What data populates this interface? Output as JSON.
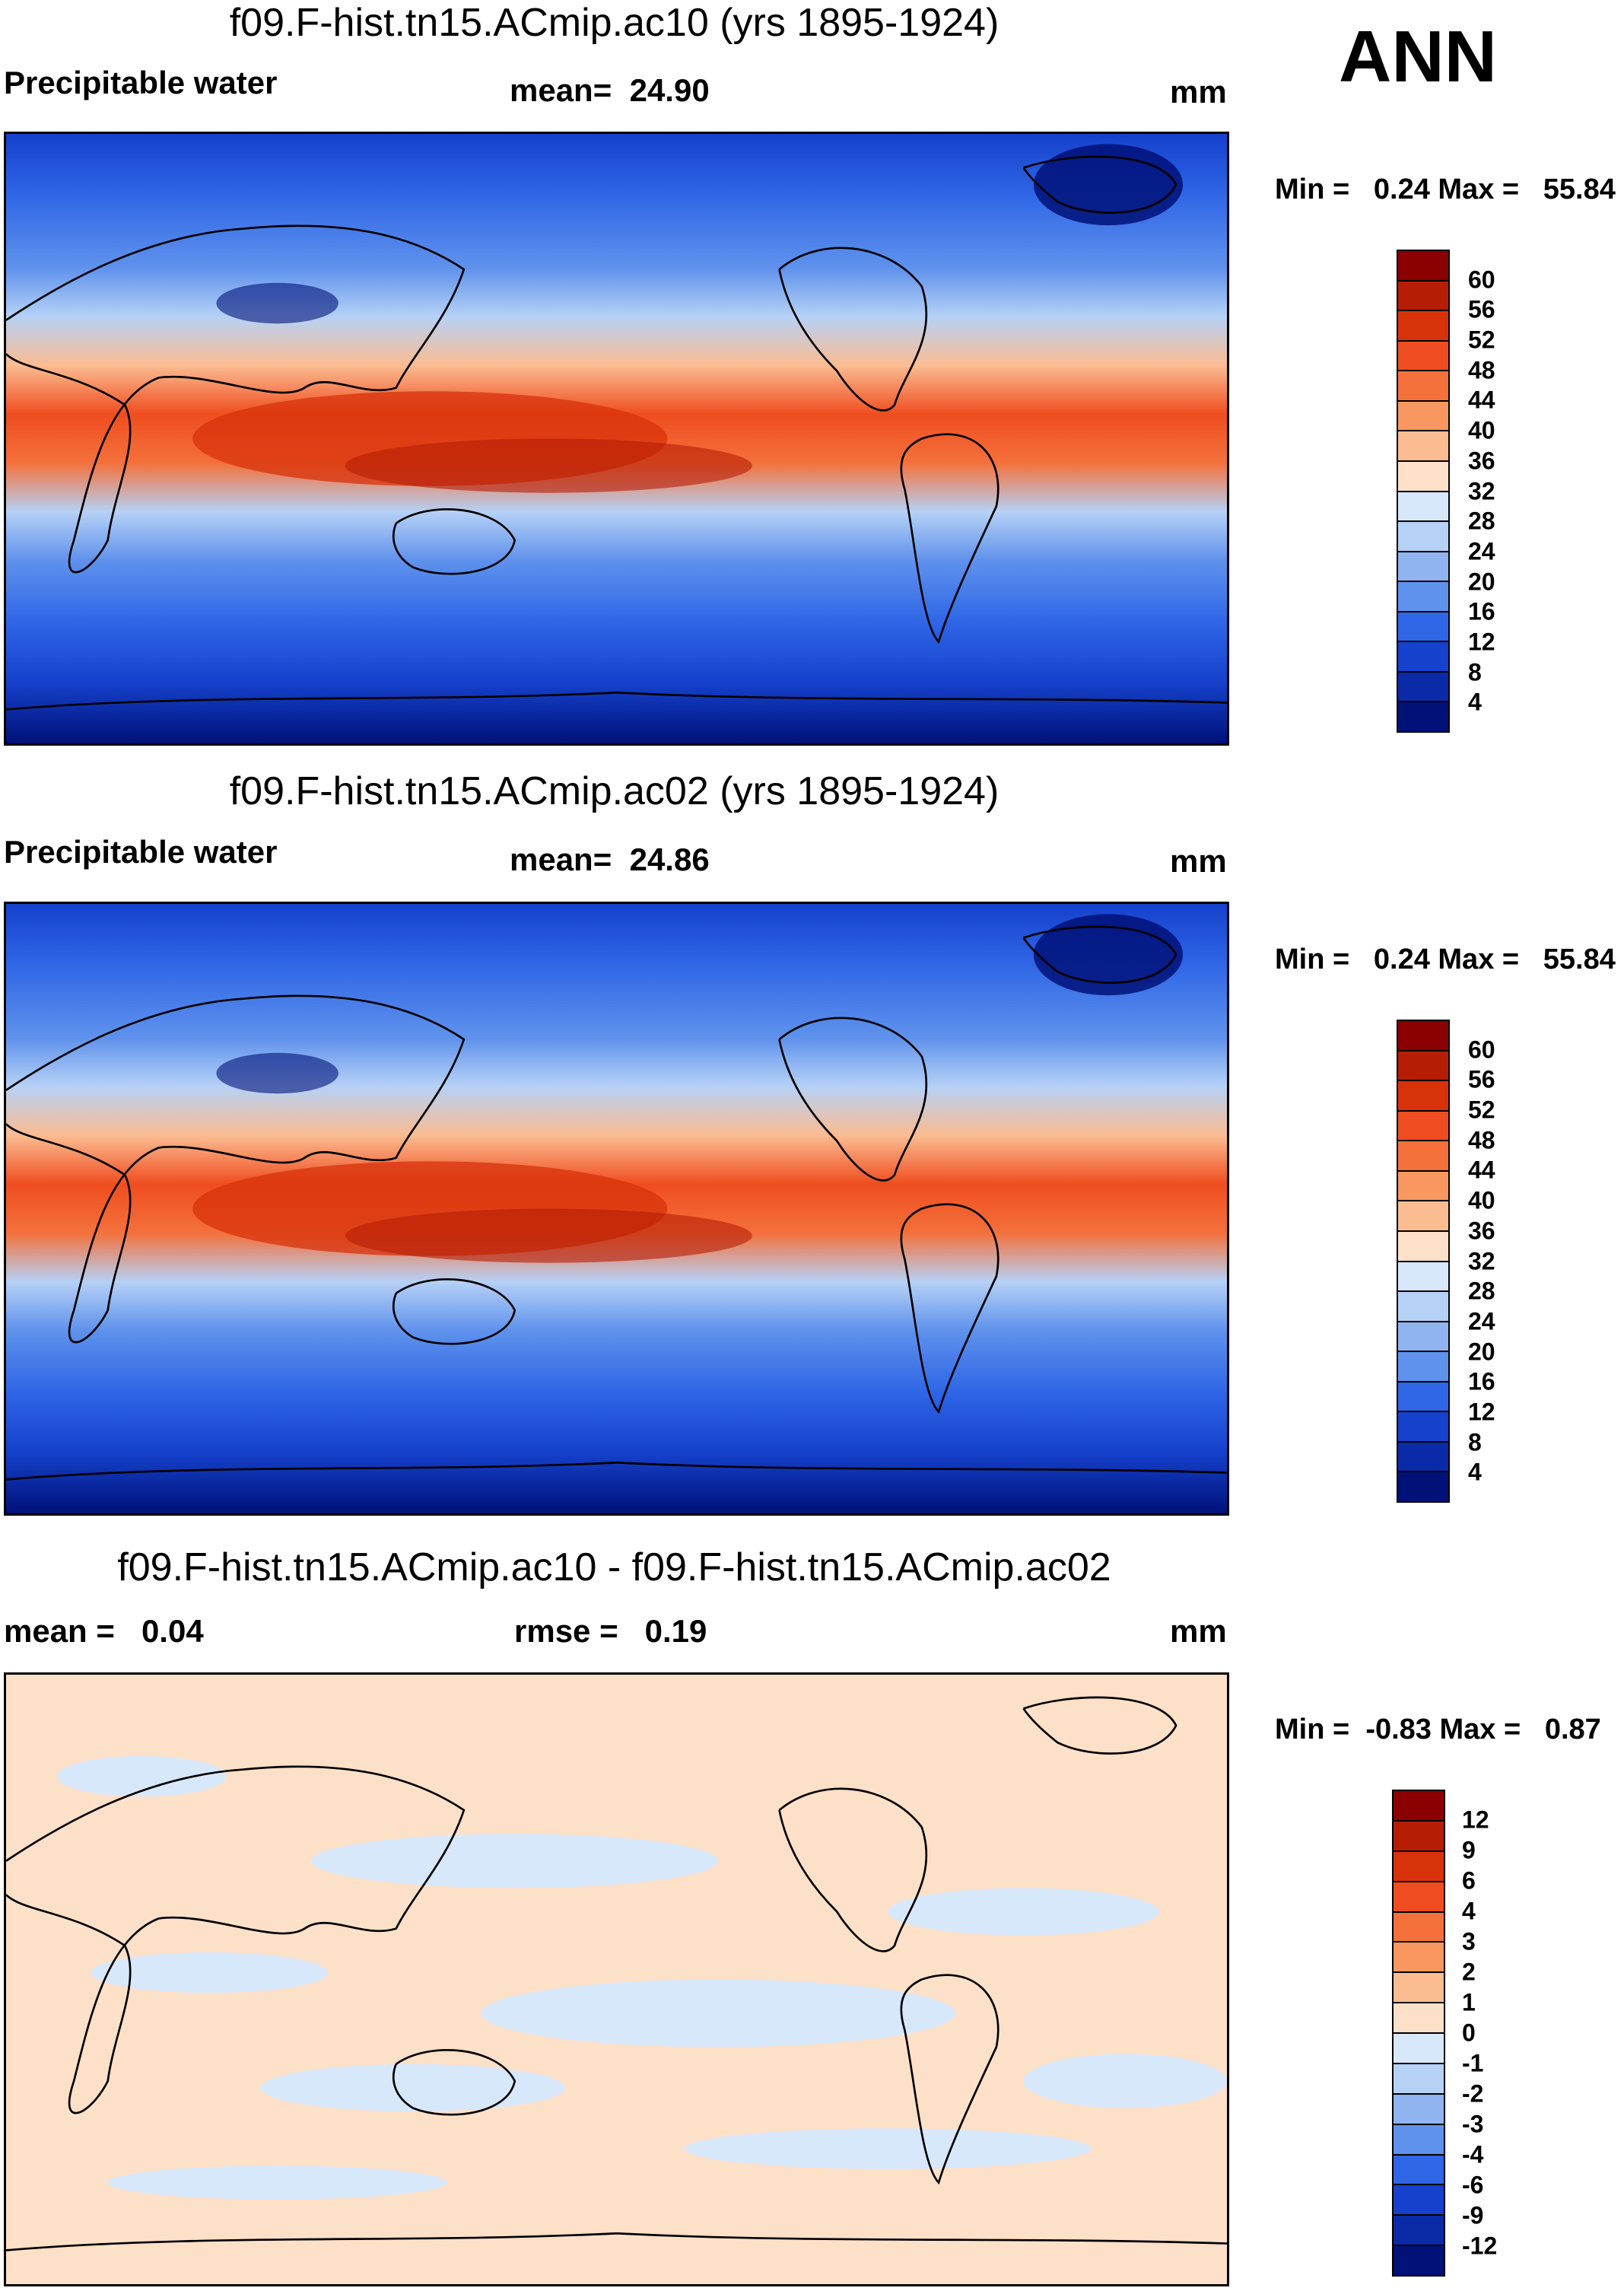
{
  "season": "ANN",
  "panels": [
    {
      "title": "f09.F-hist.tn15.ACmip.ac10 (yrs 1895-1924)",
      "left_label": "Precipitable water",
      "mean_label": "mean=",
      "mean_value": "24.90",
      "units": "mm",
      "min_label": "Min =",
      "min_value": "0.24",
      "max_label": "Max =",
      "max_value": "55.84"
    },
    {
      "title": "f09.F-hist.tn15.ACmip.ac02 (yrs 1895-1924)",
      "left_label": "Precipitable water",
      "mean_label": "mean=",
      "mean_value": "24.86",
      "units": "mm",
      "min_label": "Min =",
      "min_value": "0.24",
      "max_label": "Max =",
      "max_value": "55.84"
    },
    {
      "title": "f09.F-hist.tn15.ACmip.ac10 - f09.F-hist.tn15.ACmip.ac02",
      "mean_label": "mean =",
      "mean_value": "0.04",
      "rmse_label": "rmse =",
      "rmse_value": "0.19",
      "units": "mm",
      "min_label": "Min =",
      "min_value": "-0.83",
      "max_label": "Max =",
      "max_value": "0.87"
    }
  ],
  "colorbars": {
    "field": {
      "labels": [
        "60",
        "56",
        "52",
        "48",
        "44",
        "40",
        "36",
        "32",
        "28",
        "24",
        "20",
        "16",
        "12",
        "8",
        "4"
      ],
      "colors": [
        "#8b0000",
        "#b51d05",
        "#d8320b",
        "#ef4d1f",
        "#f4713c",
        "#f8975f",
        "#fbbc91",
        "#fde0c8",
        "#d8e8fb",
        "#b6d1f6",
        "#8fb4f0",
        "#5f92ec",
        "#2f66e6",
        "#1541cc",
        "#0a2aa8",
        "#001178"
      ]
    },
    "diff": {
      "labels": [
        "12",
        "9",
        "6",
        "4",
        "3",
        "2",
        "1",
        "0",
        "-1",
        "-2",
        "-3",
        "-4",
        "-6",
        "-9",
        "-12"
      ],
      "colors": [
        "#8b0000",
        "#b51d05",
        "#d8320b",
        "#ef4d1f",
        "#f4713c",
        "#f8975f",
        "#fbbc91",
        "#fde0c8",
        "#d8e8fb",
        "#b6d1f6",
        "#8fb4f0",
        "#5f92ec",
        "#2f66e6",
        "#1541cc",
        "#0a2aa8",
        "#001178"
      ]
    }
  }
}
